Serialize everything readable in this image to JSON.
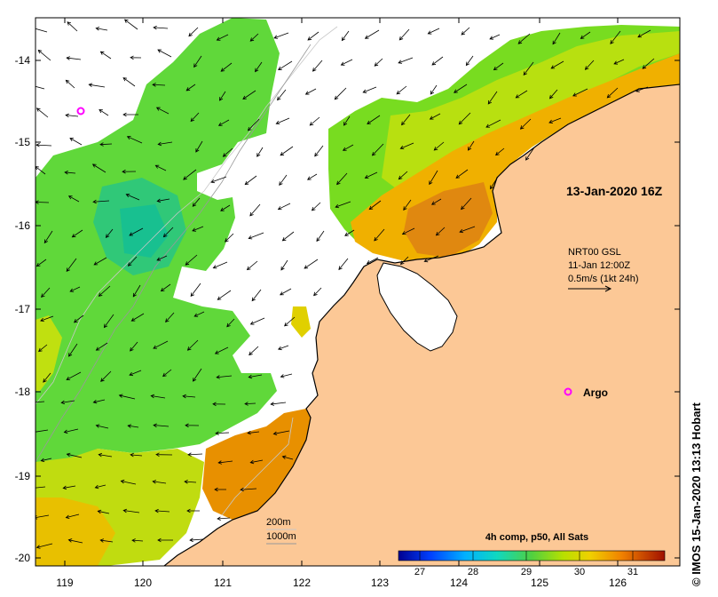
{
  "map": {
    "timestamp": "13-Jan-2020 16Z",
    "current_product": {
      "line1": "NRT00 GSL",
      "line2": "11-Jan 12:00Z",
      "line3": "0.5m/s (1kt 24h)"
    },
    "argo_label": "Argo",
    "isobaths": {
      "shallow": "200m",
      "deep": "1000m"
    },
    "credit": "© IMOS 15-Jan-2020 13:13 Hobart",
    "colorbar": {
      "title": "4h comp, p50, All Sats",
      "ticks": [
        "27",
        "28",
        "29",
        "30",
        "31"
      ],
      "range": [
        26.6,
        31.6
      ]
    },
    "axes": {
      "lon_ticks": [
        "119",
        "120",
        "121",
        "122",
        "123",
        "124",
        "125",
        "126"
      ],
      "lat_ticks": [
        "-14",
        "-15",
        "-16",
        "-17",
        "-18",
        "-19",
        "-20"
      ]
    },
    "colors": {
      "land": "#fcc896",
      "cloud": "#ffffff",
      "sst_29": "#30c870",
      "sst_29_5": "#78e020",
      "sst_30": "#c8e000",
      "sst_30_5": "#f0b000",
      "sst_31": "#e08000",
      "argo": "#ff00ff"
    }
  }
}
